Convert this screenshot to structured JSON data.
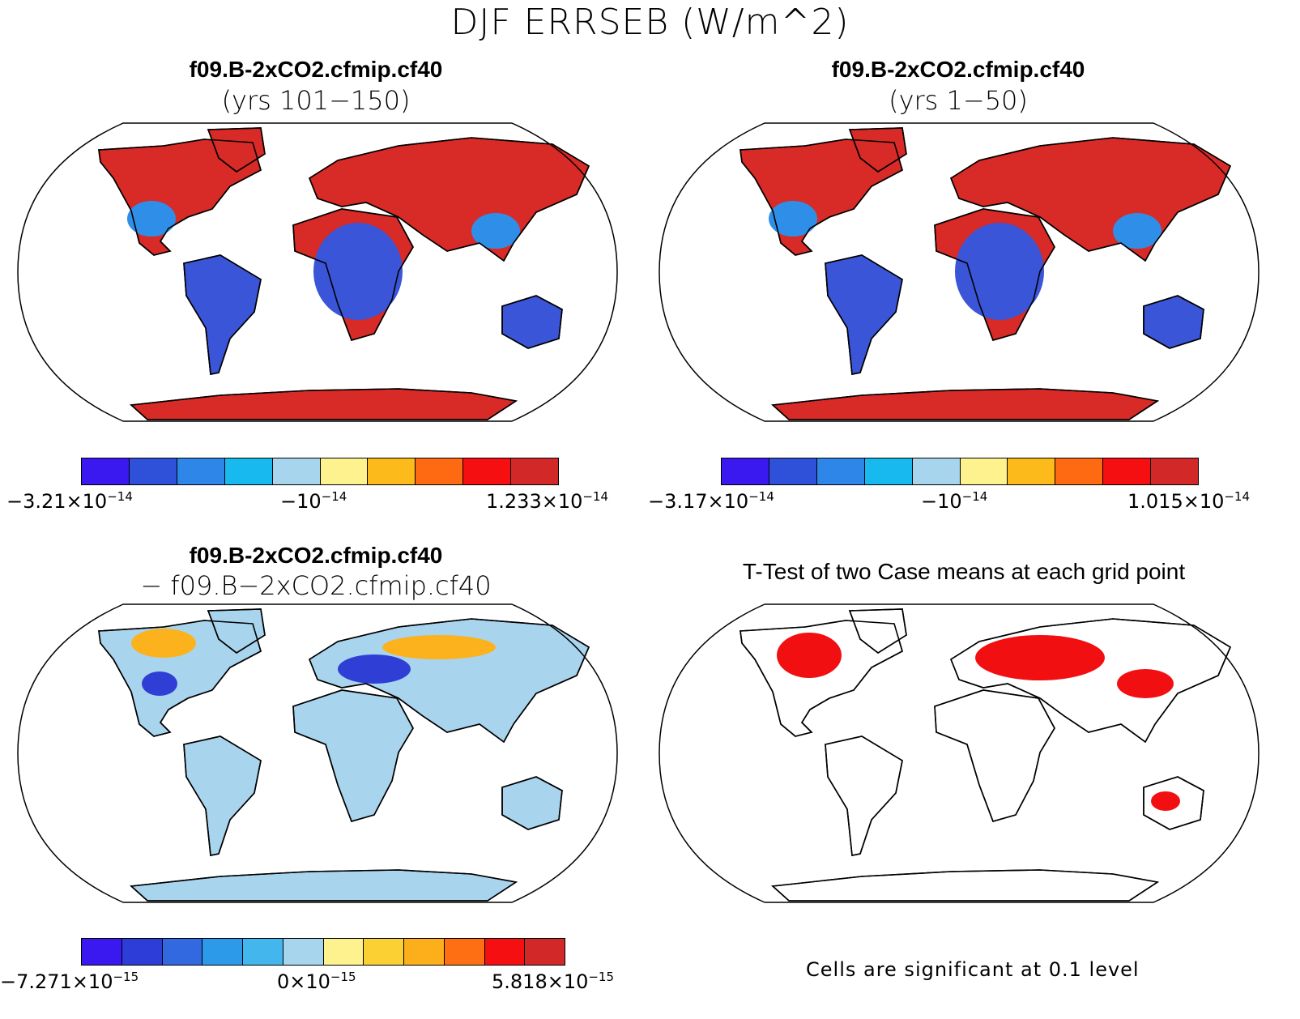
{
  "title": "DJF ERRSEB (W/m^2)",
  "panels": [
    {
      "title": "f09.B-2xCO2.cfmip.cf40",
      "subtitle": "(yrs 101−150)",
      "colorbar": {
        "colors": [
          "#3a18f0",
          "#2f51d9",
          "#2d86e8",
          "#17b9ef",
          "#a7d5ee",
          "#fdf28d",
          "#fcba1b",
          "#fd6a12",
          "#f50f10",
          "#d22828"
        ],
        "labels": [
          {
            "mantissa": "−3.21×10",
            "exp": "−14"
          },
          {
            "mantissa": "−10",
            "exp": "−14"
          },
          {
            "mantissa": "1.233×10",
            "exp": "−14"
          }
        ]
      }
    },
    {
      "title": "f09.B-2xCO2.cfmip.cf40",
      "subtitle": "(yrs 1−50)",
      "colorbar": {
        "colors": [
          "#3a18f0",
          "#2f51d9",
          "#2d86e8",
          "#17b9ef",
          "#a7d5ee",
          "#fdf28d",
          "#fcba1b",
          "#fd6a12",
          "#f50f10",
          "#d22828"
        ],
        "labels": [
          {
            "mantissa": "−3.17×10",
            "exp": "−14"
          },
          {
            "mantissa": "−10",
            "exp": "−14"
          },
          {
            "mantissa": "1.015×10",
            "exp": "−14"
          }
        ]
      }
    },
    {
      "title": "f09.B-2xCO2.cfmip.cf40",
      "subtitle": "− f09.B−2xCO2.cfmip.cf40",
      "colorbar": {
        "colors": [
          "#3a18f0",
          "#2d3ed8",
          "#3369e0",
          "#2c9ae8",
          "#43b6ee",
          "#a7d5ee",
          "#fdf28d",
          "#fbd032",
          "#fcae1b",
          "#fd6f12",
          "#f50f10",
          "#d22828"
        ],
        "labels": [
          {
            "mantissa": "−7.271×10",
            "exp": "−15"
          },
          {
            "mantissa": "0×10",
            "exp": "−15"
          },
          {
            "mantissa": "5.818×10",
            "exp": "−15"
          }
        ]
      }
    },
    {
      "title": "T-Test of two Case means at each grid point",
      "note": "Cells are significant at 0.1 level"
    }
  ],
  "map_fills": {
    "mean_high": "#d82a26",
    "mean_low": "#3a55d8",
    "mean_mid": "#2f8fe8",
    "diff_base": "#a9d4ee",
    "diff_warm": "#fcb21c",
    "diff_cold": "#2f3fd6",
    "sig": "#f20f12"
  }
}
